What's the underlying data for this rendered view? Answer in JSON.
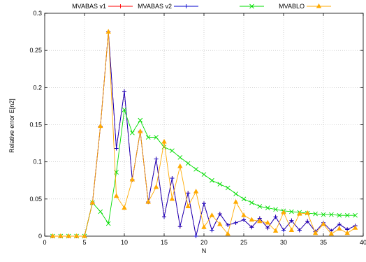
{
  "chart_data": {
    "type": "line",
    "title": "",
    "xlabel": "N",
    "ylabel": "Relative error E[n2]",
    "xlim": [
      0,
      40
    ],
    "ylim": [
      0,
      0.3
    ],
    "xticks": [
      0,
      5,
      10,
      15,
      20,
      25,
      30,
      35,
      40
    ],
    "xtick_labels": [
      "0",
      "5",
      "10",
      "15",
      "20",
      "25",
      "30",
      "35",
      "40"
    ],
    "yticks": [
      0,
      0.05,
      0.1,
      0.15,
      0.2,
      0.25,
      0.3
    ],
    "ytick_labels": [
      "0",
      "0.05",
      "0.1",
      "0.15",
      "0.2",
      "0.25",
      "0.3"
    ],
    "grid": true,
    "legend_position": "top",
    "series": [
      {
        "name": "MVABAS v1",
        "color": "#ff0000",
        "marker": "plus",
        "x": [
          1,
          2,
          3,
          4,
          5,
          6,
          7,
          8,
          9,
          10,
          11,
          12,
          13,
          14,
          15,
          16,
          17,
          18,
          19,
          20,
          21,
          22,
          23,
          24,
          25,
          26,
          27,
          28,
          29,
          30,
          31,
          32,
          33,
          34,
          35,
          36,
          37,
          38,
          39
        ],
        "y": [
          0,
          0,
          0,
          0,
          0,
          0.045,
          0.148,
          0.275,
          0.118,
          0.195,
          0.076,
          0.141,
          0.046,
          0.104,
          0.026,
          0.078,
          0.013,
          0.058,
          0,
          0.044,
          0.008,
          0.03,
          0.015,
          0.018,
          0.022,
          0.012,
          0.024,
          0.011,
          0.026,
          0.008,
          0.021,
          0.008,
          0.02,
          0.006,
          0.018,
          0.007,
          0.016,
          0.009,
          0.014
        ]
      },
      {
        "name": "MVABAS v2",
        "color": "#0000cc",
        "marker": "plus",
        "x": [
          1,
          2,
          3,
          4,
          5,
          6,
          7,
          8,
          9,
          10,
          11,
          12,
          13,
          14,
          15,
          16,
          17,
          18,
          19,
          20,
          21,
          22,
          23,
          24,
          25,
          26,
          27,
          28,
          29,
          30,
          31,
          32,
          33,
          34,
          35,
          36,
          37,
          38,
          39
        ],
        "y": [
          0,
          0,
          0,
          0,
          0,
          0.045,
          0.148,
          0.275,
          0.118,
          0.195,
          0.076,
          0.141,
          0.046,
          0.104,
          0.026,
          0.078,
          0.013,
          0.058,
          0,
          0.044,
          0.008,
          0.03,
          0.015,
          0.018,
          0.022,
          0.012,
          0.024,
          0.011,
          0.026,
          0.008,
          0.021,
          0.008,
          0.02,
          0.006,
          0.018,
          0.007,
          0.016,
          0.009,
          0.014
        ]
      },
      {
        "name": "",
        "color": "#00dd00",
        "marker": "cross",
        "x": [
          1,
          2,
          3,
          4,
          5,
          6,
          7,
          8,
          9,
          10,
          11,
          12,
          13,
          14,
          15,
          16,
          17,
          18,
          19,
          20,
          21,
          22,
          23,
          24,
          25,
          26,
          27,
          28,
          29,
          30,
          31,
          32,
          33,
          34,
          35,
          36,
          37,
          38,
          39
        ],
        "y": [
          0,
          0,
          0,
          0,
          0,
          0.045,
          0.033,
          0.017,
          0.086,
          0.17,
          0.139,
          0.156,
          0.133,
          0.133,
          0.12,
          0.115,
          0.106,
          0.098,
          0.09,
          0.083,
          0.075,
          0.07,
          0.065,
          0.057,
          0.05,
          0.045,
          0.04,
          0.038,
          0.036,
          0.034,
          0.033,
          0.032,
          0.031,
          0.03,
          0.029,
          0.029,
          0.028,
          0.028,
          0.028
        ]
      },
      {
        "name": "MVABLO",
        "color": "#ffaa00",
        "marker": "triangle",
        "x": [
          1,
          2,
          3,
          4,
          5,
          6,
          7,
          8,
          9,
          10,
          11,
          12,
          13,
          14,
          15,
          16,
          17,
          18,
          19,
          20,
          21,
          22,
          23,
          24,
          25,
          26,
          27,
          28,
          29,
          30,
          31,
          32,
          33,
          34,
          35,
          36,
          37,
          38,
          39
        ],
        "y": [
          0,
          0,
          0,
          0,
          0,
          0.045,
          0.148,
          0.275,
          0.054,
          0.038,
          0.076,
          0.141,
          0.046,
          0.066,
          0.127,
          0.05,
          0.094,
          0.04,
          0.06,
          0.012,
          0.028,
          0.016,
          0.003,
          0.046,
          0.028,
          0.022,
          0.02,
          0.018,
          0.007,
          0.032,
          0.008,
          0.03,
          0.031,
          0.004,
          0.016,
          0.003,
          0.01,
          0.004,
          0.011
        ]
      }
    ]
  }
}
